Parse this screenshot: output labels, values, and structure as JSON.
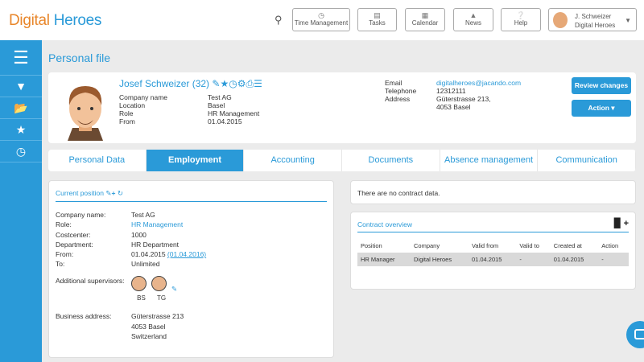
{
  "header": {
    "logo_a": "Digital",
    "logo_b": "Heroes",
    "buttons": [
      {
        "label": "Time Management",
        "icon": "clock-icon"
      },
      {
        "label": "Tasks",
        "icon": "tasks-icon"
      },
      {
        "label": "Calendar",
        "icon": "calendar-icon"
      },
      {
        "label": "News",
        "icon": "bell-icon"
      },
      {
        "label": "Help",
        "icon": "help-icon"
      }
    ],
    "user": {
      "name": "J. Schweizer",
      "company": "Digital Heroes"
    }
  },
  "sidebar": [
    "menu-icon",
    "filter-icon",
    "folder-icon",
    "star-icon",
    "clock-icon"
  ],
  "page_title": "Personal file",
  "profile": {
    "name": "Josef Schweizer (32)",
    "fields": [
      {
        "label": "Company name",
        "value": "Test AG"
      },
      {
        "label": "Location",
        "value": "Basel"
      },
      {
        "label": "Role",
        "value": "HR Management"
      },
      {
        "label": "From",
        "value": "01.04.2015"
      }
    ],
    "contact": [
      {
        "label": "Email",
        "value": "digitalheroes@jacando.com"
      },
      {
        "label": "Telephone",
        "value": "12312111"
      },
      {
        "label": "Address",
        "value": "Güterstrasse 213,"
      },
      {
        "label": "",
        "value": "4053 Basel"
      }
    ],
    "review_button": "Review changes",
    "action_button": "Action ▾"
  },
  "tabs": [
    "Personal Data",
    "Employment",
    "Accounting",
    "Documents",
    "Absence management",
    "Communication"
  ],
  "active_tab": "Employment",
  "current_position": {
    "title": "Current position",
    "fields": [
      {
        "label": "Company name:",
        "value": "Test AG"
      },
      {
        "label": "Role:",
        "value": "HR Management"
      },
      {
        "label": "Costcenter:",
        "value": "1000"
      },
      {
        "label": "Department:",
        "value": "HR Department"
      },
      {
        "label": "From:",
        "value": "01.04.2015",
        "link": "(01.04.2016)"
      },
      {
        "label": "To:",
        "value": "Unlimited"
      }
    ],
    "supervisors_label": "Additional supervisors:",
    "supervisors": [
      "BS",
      "TG"
    ],
    "address_label": "Business address:",
    "address": [
      "Güterstrasse 213",
      "4053 Basel",
      "Switzerland"
    ]
  },
  "contract_data_msg": "There are no contract data.",
  "contract_overview": {
    "title": "Contract overview",
    "columns": [
      "Position",
      "Company",
      "Valid from",
      "Valid to",
      "Created at",
      "Action"
    ],
    "rows": [
      [
        "HR Manager",
        "Digital Heroes",
        "01.04.2015",
        "-",
        "01.04.2015",
        "-"
      ]
    ]
  },
  "colors": {
    "accent": "#2a9ad8",
    "logo_orange": "#e8862a"
  }
}
